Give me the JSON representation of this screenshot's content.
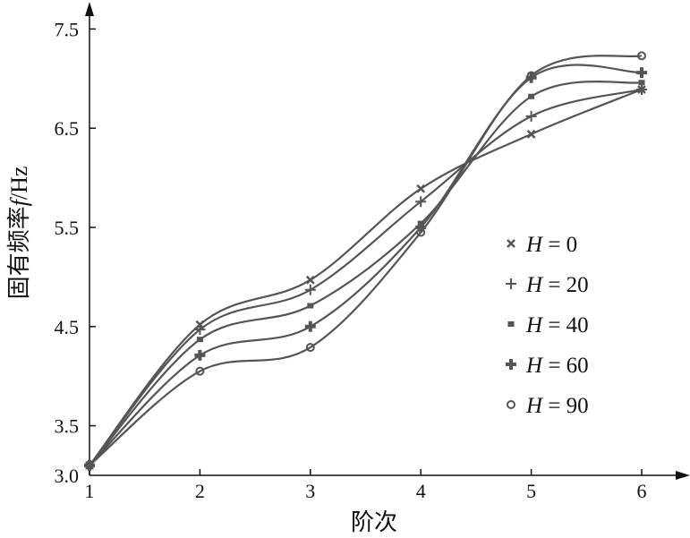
{
  "chart_data": {
    "type": "line",
    "title": "",
    "xlabel": "阶次",
    "ylabel_prefix": "固有频率",
    "ylabel_var": "f",
    "ylabel_unit": "/Hz",
    "x": [
      1,
      2,
      3,
      4,
      5,
      6
    ],
    "xlim": [
      1,
      6.4
    ],
    "ylim": [
      3.0,
      7.7
    ],
    "xticks": [
      "1",
      "2",
      "3",
      "4",
      "5",
      "6"
    ],
    "yticks": [
      "3.0",
      "3.5",
      "4.5",
      "5.5",
      "6.5",
      "7.5"
    ],
    "ytick_values": [
      3.0,
      3.5,
      4.5,
      5.5,
      6.5,
      7.5
    ],
    "grid": false,
    "legend_position": "right",
    "line_color": "#555555",
    "series": [
      {
        "name": "H = 0",
        "var": "H",
        "label": " = 0",
        "marker": "x",
        "values": [
          3.1,
          4.52,
          4.97,
          5.89,
          6.44,
          6.89
        ]
      },
      {
        "name": "H = 20",
        "var": "H",
        "label": " = 20",
        "marker": "plus",
        "values": [
          3.1,
          4.47,
          4.87,
          5.76,
          6.62,
          6.89
        ]
      },
      {
        "name": "H = 40",
        "var": "H",
        "label": " = 40",
        "marker": "dot",
        "values": [
          3.1,
          4.37,
          4.71,
          5.54,
          6.82,
          6.96
        ]
      },
      {
        "name": "H = 60",
        "var": "H",
        "label": " = 60",
        "marker": "bigplus",
        "values": [
          3.1,
          4.21,
          4.5,
          5.5,
          7.01,
          7.06
        ]
      },
      {
        "name": "H = 90",
        "var": "H",
        "label": " = 90",
        "marker": "circle",
        "values": [
          3.1,
          4.05,
          4.29,
          5.45,
          7.03,
          7.23
        ]
      }
    ]
  }
}
